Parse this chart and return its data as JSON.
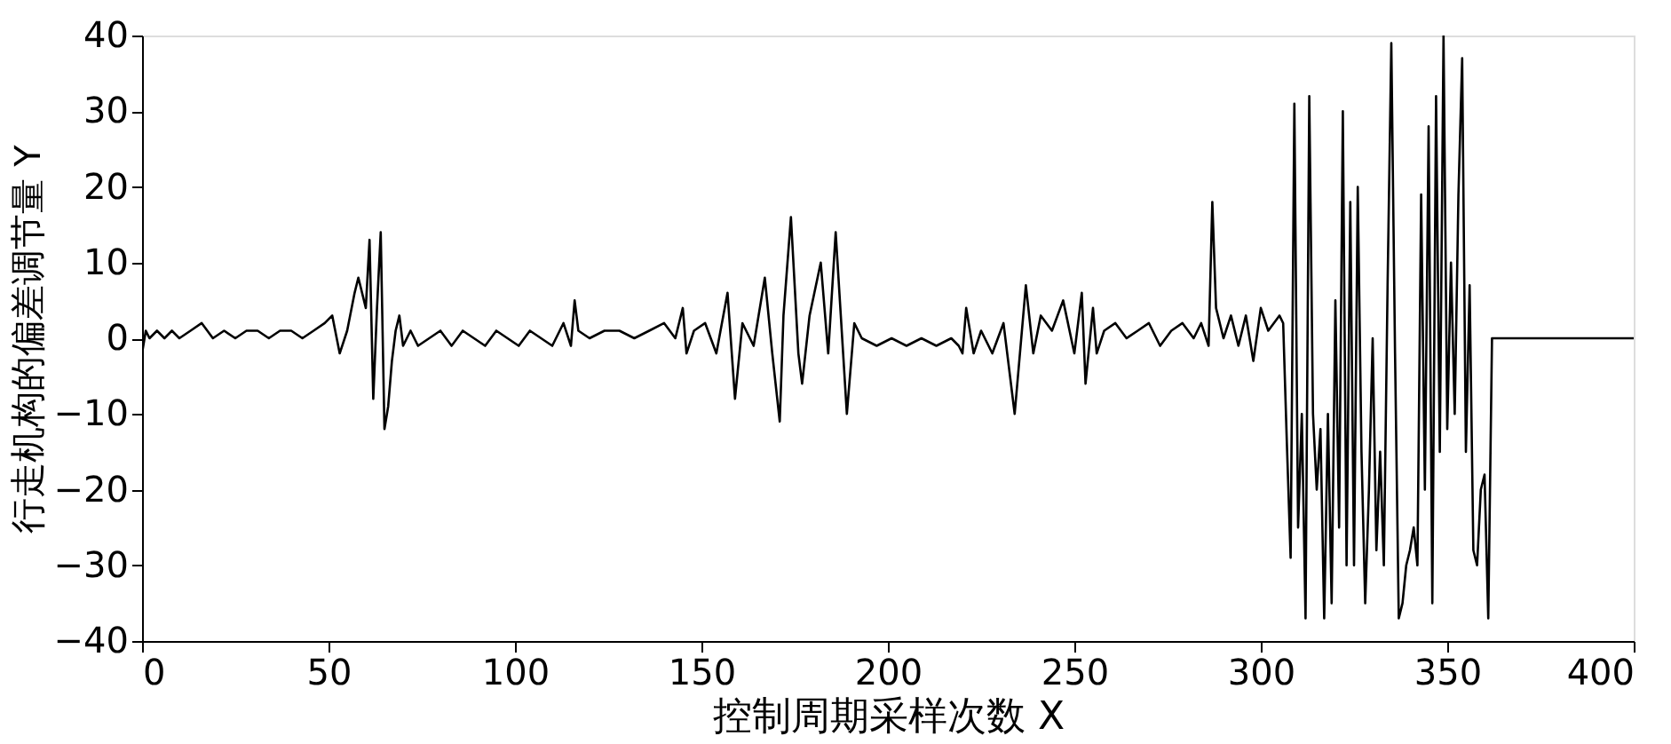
{
  "chart_data": {
    "type": "line",
    "xlabel": "控制周期采样次数 X",
    "ylabel": "行走机构的偏差调节量 Y",
    "xlim": [
      0,
      400
    ],
    "ylim": [
      -40,
      40
    ],
    "xticks": [
      0,
      50,
      100,
      150,
      200,
      250,
      300,
      350,
      400
    ],
    "yticks": [
      -40,
      -30,
      -20,
      -10,
      0,
      10,
      20,
      30,
      40
    ],
    "grid": false,
    "marker": "none",
    "line_style": "solid",
    "series": [
      {
        "color": "#000000",
        "x": [
          0,
          1,
          2,
          4,
          6,
          8,
          10,
          13,
          16,
          19,
          22,
          25,
          28,
          31,
          34,
          37,
          40,
          43,
          46,
          49,
          51,
          53,
          55,
          57,
          58,
          60,
          61,
          62,
          63,
          64,
          65,
          66,
          67,
          68,
          69,
          70,
          72,
          74,
          77,
          80,
          83,
          86,
          89,
          92,
          95,
          98,
          101,
          104,
          107,
          110,
          113,
          115,
          116,
          117,
          120,
          124,
          128,
          132,
          136,
          140,
          143,
          145,
          146,
          148,
          151,
          154,
          157,
          159,
          161,
          164,
          167,
          169,
          171,
          172,
          174,
          176,
          177,
          179,
          182,
          184,
          186,
          188,
          189,
          191,
          193,
          197,
          201,
          205,
          209,
          213,
          217,
          219,
          220,
          221,
          223,
          225,
          228,
          231,
          234,
          237,
          239,
          241,
          244,
          247,
          250,
          252,
          253,
          255,
          256,
          258,
          261,
          264,
          267,
          270,
          273,
          276,
          279,
          282,
          284,
          286,
          287,
          288,
          290,
          292,
          294,
          296,
          298,
          300,
          302,
          305,
          306,
          307,
          308,
          309,
          310,
          311,
          312,
          313,
          314,
          315,
          316,
          317,
          318,
          319,
          320,
          321,
          322,
          323,
          324,
          325,
          326,
          327,
          328,
          329,
          330,
          331,
          332,
          333,
          334,
          335,
          336,
          337,
          338,
          339,
          340,
          341,
          342,
          343,
          344,
          345,
          346,
          347,
          348,
          349,
          350,
          351,
          352,
          353,
          354,
          355,
          356,
          357,
          358,
          359,
          360,
          361,
          362,
          400
        ],
        "values": [
          -2,
          1,
          0,
          1,
          0,
          1,
          0,
          1,
          2,
          0,
          1,
          0,
          1,
          1,
          0,
          1,
          1,
          0,
          1,
          2,
          3,
          -2,
          1,
          6,
          8,
          4,
          13,
          -8,
          4,
          14,
          -12,
          -9,
          -3,
          1,
          3,
          -1,
          1,
          -1,
          0,
          1,
          -1,
          1,
          0,
          -1,
          1,
          0,
          -1,
          1,
          0,
          -1,
          2,
          -1,
          5,
          1,
          0,
          1,
          1,
          0,
          1,
          2,
          0,
          4,
          -2,
          1,
          2,
          -2,
          6,
          -8,
          2,
          -1,
          8,
          -2,
          -11,
          3,
          16,
          -2,
          -6,
          3,
          10,
          -2,
          14,
          -2,
          -10,
          2,
          0,
          -1,
          0,
          -1,
          0,
          -1,
          0,
          -1,
          -2,
          4,
          -2,
          1,
          -2,
          2,
          -10,
          7,
          -2,
          3,
          1,
          5,
          -2,
          6,
          -6,
          4,
          -2,
          1,
          2,
          0,
          1,
          2,
          -1,
          1,
          2,
          0,
          2,
          -1,
          18,
          4,
          0,
          3,
          -1,
          3,
          -3,
          4,
          1,
          3,
          2,
          -14,
          -29,
          31,
          -25,
          -10,
          -37,
          32,
          -10,
          -20,
          -12,
          -37,
          -10,
          -35,
          5,
          -25,
          30,
          -30,
          18,
          -30,
          20,
          -15,
          -35,
          -20,
          0,
          -28,
          -15,
          -30,
          7,
          39,
          -2,
          -37,
          -35,
          -30,
          -28,
          -25,
          -30,
          19,
          -20,
          28,
          -35,
          32,
          -15,
          40,
          -12,
          10,
          -10,
          19,
          37,
          -15,
          7,
          -28,
          -30,
          -20,
          -18,
          -37,
          0,
          0
        ]
      }
    ]
  }
}
